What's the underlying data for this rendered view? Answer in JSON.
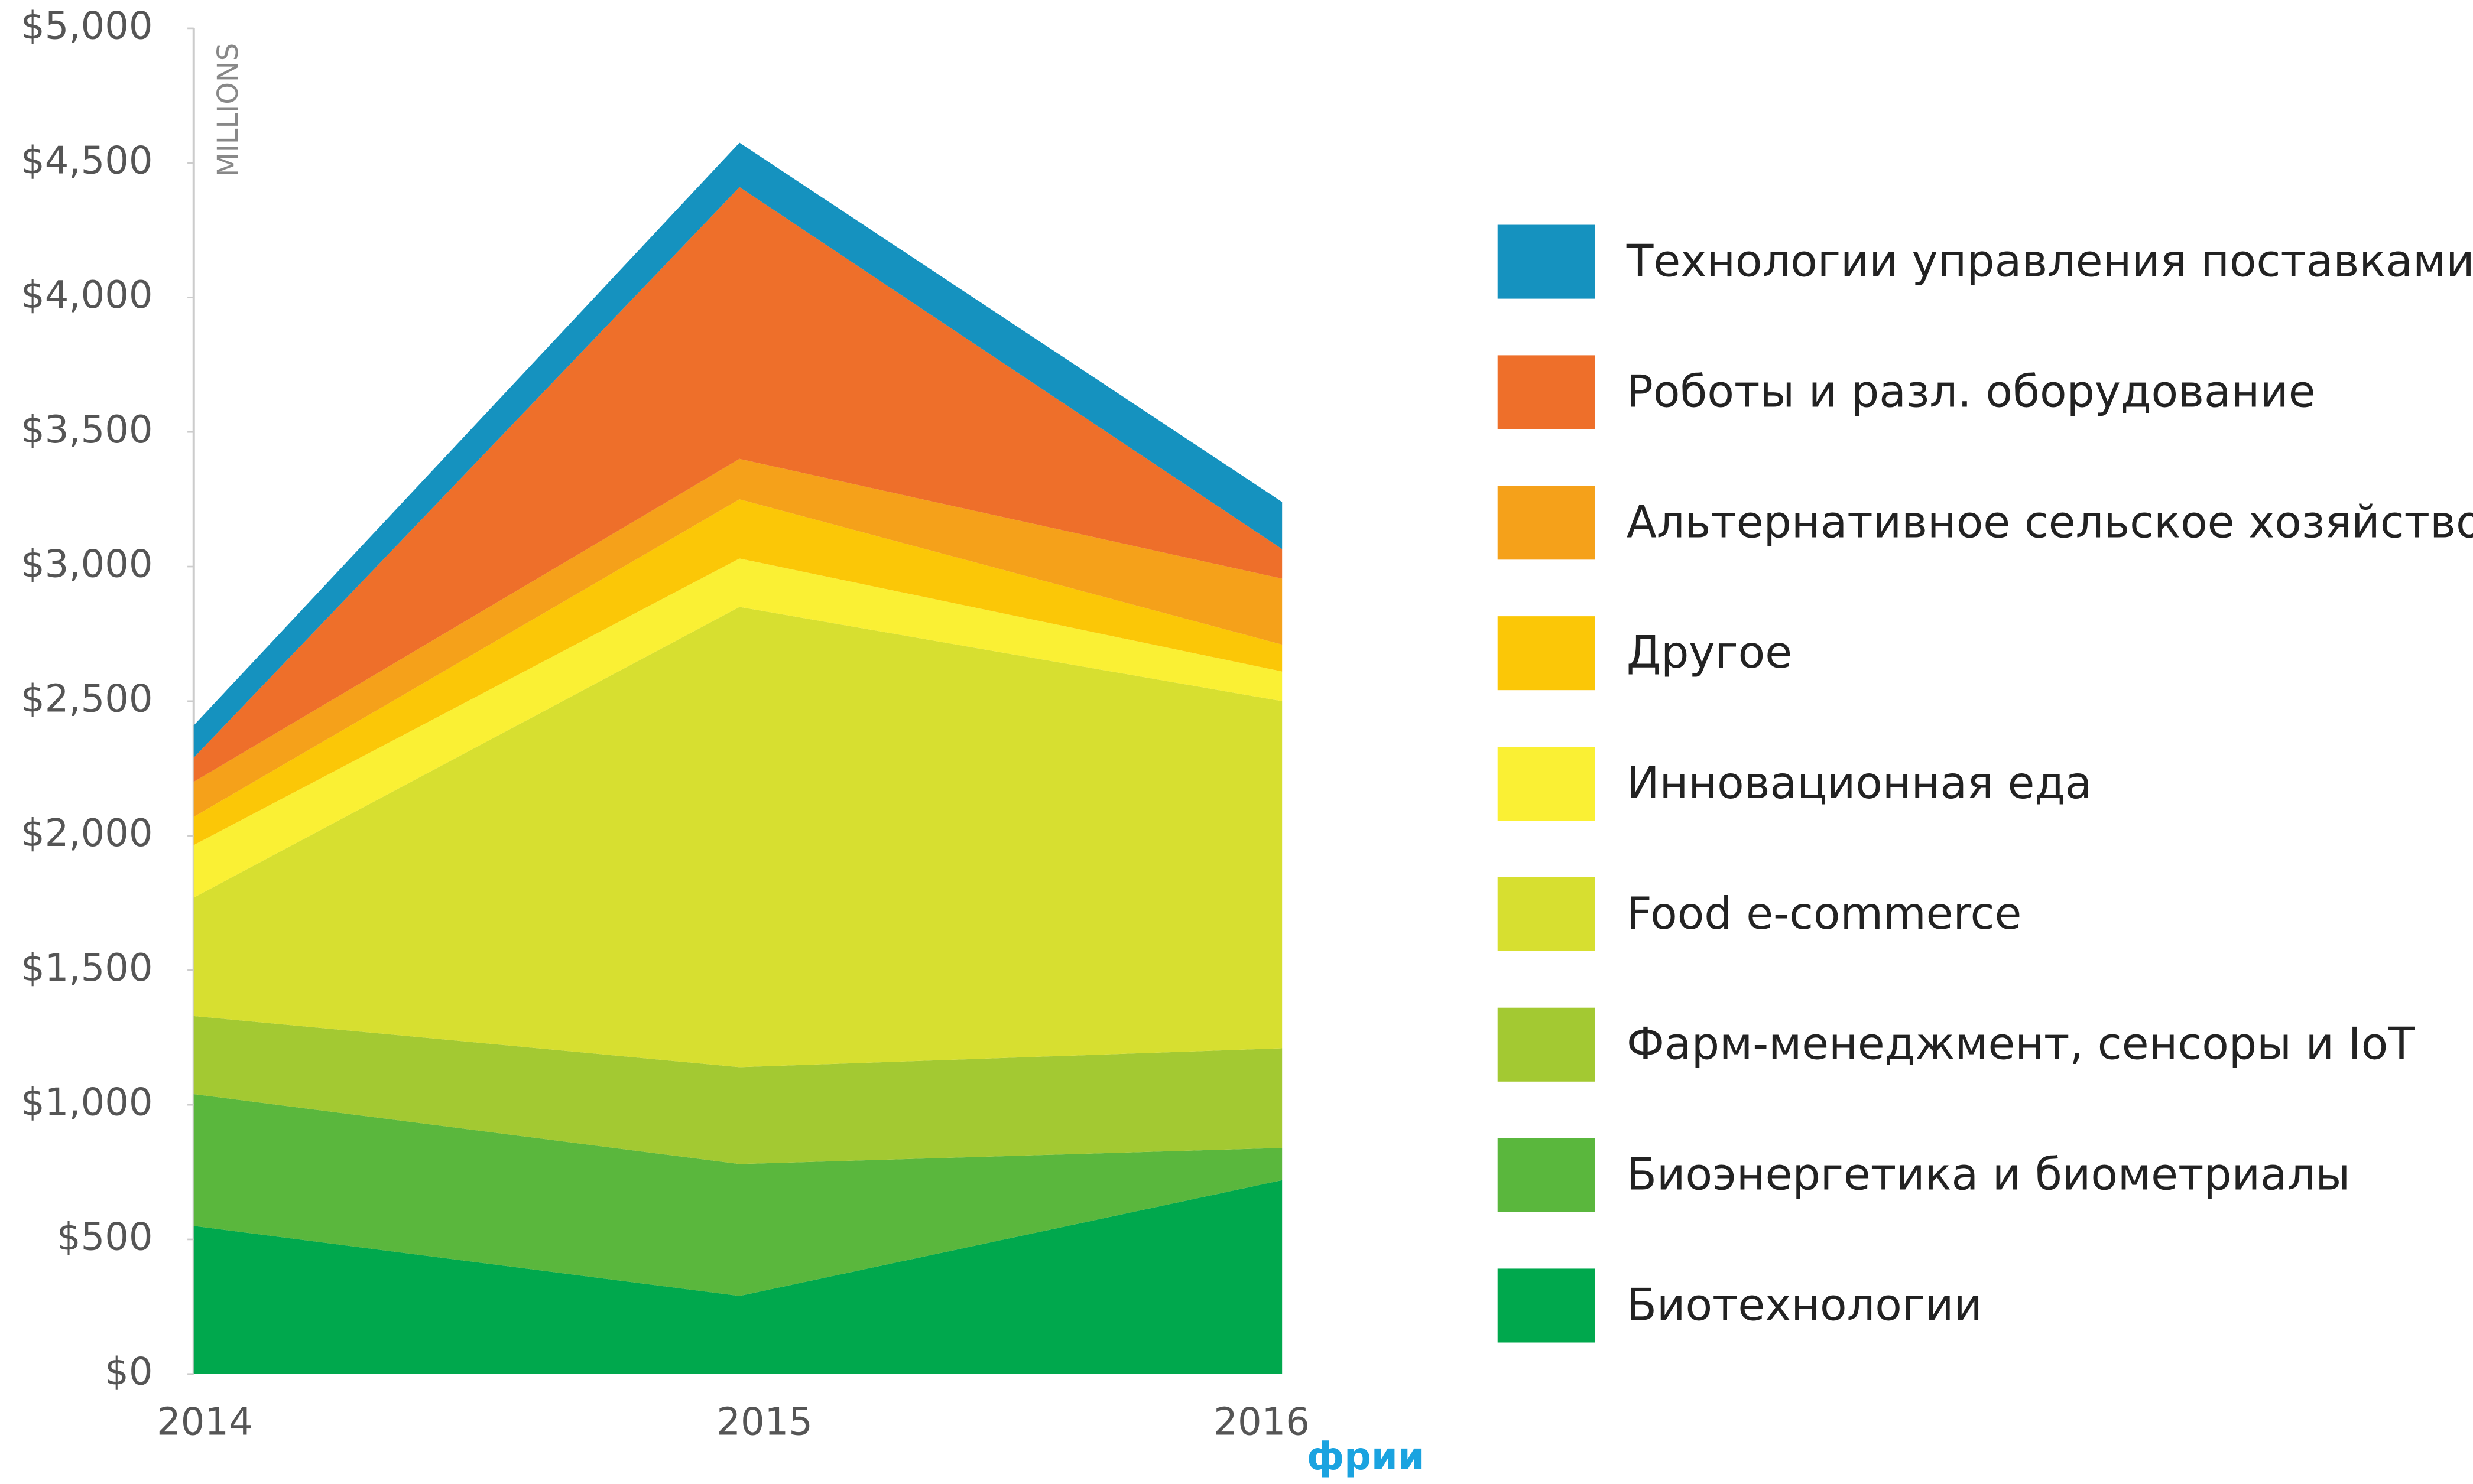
{
  "chart_data": {
    "type": "stacked_area",
    "y_label": "MILLIONS",
    "watermark": "фрии",
    "categories": [
      "2014",
      "2015",
      "2016"
    ],
    "ylim": [
      0,
      5000
    ],
    "yticks": [
      {
        "value": 0,
        "label": "$0"
      },
      {
        "value": 500,
        "label": "$500"
      },
      {
        "value": 1000,
        "label": "$1,000"
      },
      {
        "value": 1500,
        "label": "$1,500"
      },
      {
        "value": 2000,
        "label": "$2,000"
      },
      {
        "value": 2500,
        "label": "$2,500"
      },
      {
        "value": 3000,
        "label": "$3,000"
      },
      {
        "value": 3500,
        "label": "$3,500"
      },
      {
        "value": 4000,
        "label": "$4,000"
      },
      {
        "value": 4500,
        "label": "$4,500"
      },
      {
        "value": 5000,
        "label": "$5,000"
      }
    ],
    "series": [
      {
        "name": "Биотехнологии",
        "color": "#00a84d",
        "values": [
          550,
          290,
          720
        ]
      },
      {
        "name": "Биоэнергетика и биометриалы",
        "color": "#5ab73d",
        "values": [
          490,
          490,
          120
        ]
      },
      {
        "name": "Фарм-менеджмент, сенсоры и IoT",
        "color": "#a3c932",
        "values": [
          290,
          360,
          370
        ]
      },
      {
        "name": "Food e-commerce",
        "color": "#d7df30",
        "values": [
          440,
          1710,
          1290
        ]
      },
      {
        "name": "Инновационная еда",
        "color": "#faf034",
        "values": [
          195,
          180,
          110
        ]
      },
      {
        "name": "Другое",
        "color": "#fbc707",
        "values": [
          105,
          220,
          100
        ]
      },
      {
        "name": "Альтернативное сельское хозяйство",
        "color": "#f5a11a",
        "values": [
          130,
          150,
          245
        ]
      },
      {
        "name": "Роботы и разл. оборудование",
        "color": "#ee6f2a",
        "values": [
          90,
          1010,
          110
        ]
      },
      {
        "name": "Технологии управления поставками",
        "color": "#1592bf",
        "values": [
          120,
          165,
          175
        ]
      }
    ]
  }
}
